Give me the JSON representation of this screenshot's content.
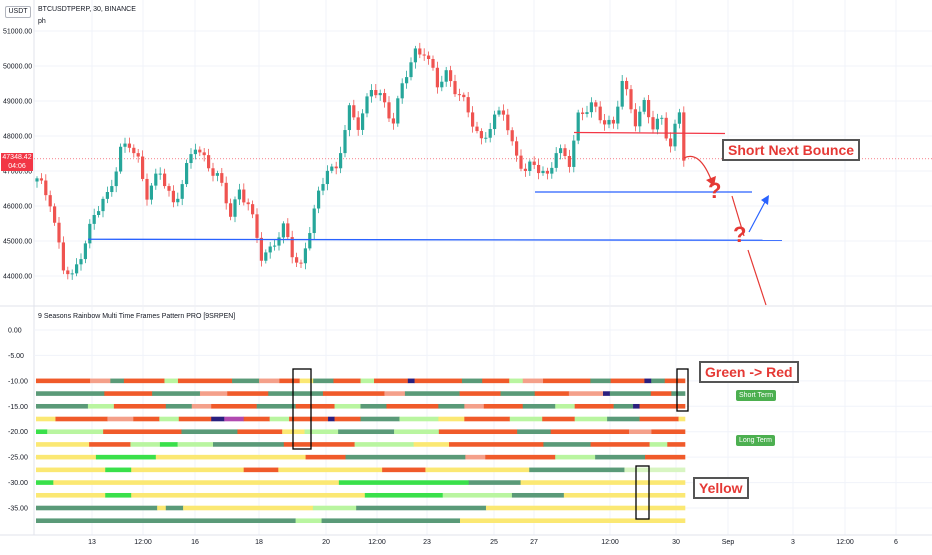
{
  "symbol_header": "BTCUSDTPERP, 30, BINANCE",
  "sub_header": "ph",
  "currency_tag": "USDT",
  "price_tag": "47348.42",
  "countdown_tag": "04:06",
  "indicator_title": "9 Seasons Rainbow Multi Time Frames Pattern PRO [9SRPEN]",
  "annotations": {
    "short_next_bounce": "Short Next Bounce",
    "green_to_red": "Green -> Red",
    "yellow": "Yellow",
    "question_1": "?",
    "question_2": "?"
  },
  "badges": {
    "short_term": "Short Term",
    "long_term": "Long Term"
  },
  "colors": {
    "up": "#26a69a",
    "down": "#ef5350",
    "support": "#2962ff",
    "resistance": "#f23645",
    "price_line": "#f23645",
    "rainbow": {
      "r": "#f05a2a",
      "p": "#f4a08a",
      "g": "#5a9a78",
      "l": "#b9f5a0",
      "y": "#fbe873",
      "b": "#2a1f7e",
      "m": "#b04ab0",
      "G": "#39e04a",
      "s": "#d8f5c2"
    }
  },
  "chart_data": [
    {
      "type": "candlestick",
      "title": "BTCUSDTPERP, 30, BINANCE",
      "y_tick_labels": [
        "44000.00",
        "45000.00",
        "46000.00",
        "47000.00",
        "48000.00",
        "49000.00",
        "50000.00",
        "51000.00"
      ],
      "x_tick_labels": [
        "13",
        "12:00",
        "16",
        "18",
        "20",
        "12:00",
        "23",
        "25",
        "27",
        "12:00",
        "30",
        "Sep",
        "3",
        "12:00",
        "6"
      ],
      "close_path": [
        [
          0,
          46700
        ],
        [
          3,
          46200
        ],
        [
          6,
          44200
        ],
        [
          8,
          43900
        ],
        [
          10,
          44700
        ],
        [
          13,
          45700
        ],
        [
          16,
          46300
        ],
        [
          19,
          47600
        ],
        [
          21,
          47700
        ],
        [
          23,
          47300
        ],
        [
          25,
          46400
        ],
        [
          28,
          46900
        ],
        [
          31,
          46100
        ],
        [
          33,
          46700
        ],
        [
          36,
          47700
        ],
        [
          38,
          47400
        ],
        [
          41,
          46800
        ],
        [
          44,
          45800
        ],
        [
          46,
          46500
        ],
        [
          48,
          46000
        ],
        [
          51,
          44600
        ],
        [
          53,
          44800
        ],
        [
          56,
          45300
        ],
        [
          58,
          44700
        ],
        [
          60,
          44300
        ],
        [
          63,
          45800
        ],
        [
          66,
          47200
        ],
        [
          68,
          47000
        ],
        [
          71,
          48700
        ],
        [
          73,
          48400
        ],
        [
          76,
          49300
        ],
        [
          78,
          49100
        ],
        [
          81,
          48500
        ],
        [
          83,
          49400
        ],
        [
          86,
          50400
        ],
        [
          88,
          50500
        ],
        [
          91,
          49400
        ],
        [
          93,
          49800
        ],
        [
          96,
          49200
        ],
        [
          98,
          48600
        ],
        [
          101,
          47900
        ],
        [
          103,
          48300
        ],
        [
          106,
          48700
        ],
        [
          108,
          47800
        ],
        [
          111,
          46900
        ],
        [
          113,
          47200
        ],
        [
          116,
          46900
        ],
        [
          118,
          47500
        ],
        [
          121,
          47300
        ],
        [
          123,
          48600
        ],
        [
          126,
          48800
        ],
        [
          128,
          48600
        ],
        [
          131,
          48300
        ],
        [
          133,
          49500
        ],
        [
          136,
          48500
        ],
        [
          138,
          48900
        ],
        [
          140,
          48200
        ],
        [
          142,
          48500
        ],
        [
          144,
          47800
        ],
        [
          146,
          48600
        ],
        [
          147,
          47350
        ]
      ],
      "resistance": 48100,
      "support_upper": 46400,
      "support_lower": 45050,
      "current_price": 47348.42
    },
    {
      "type": "heatmap",
      "title": "9 Seasons Rainbow Multi Time Frames Pattern PRO [9SRPEN]",
      "y_tick_labels": [
        "0.00",
        "-5.00",
        "-10.00",
        "-15.00",
        "-20.00",
        "-25.00",
        "-30.00",
        "-35.00"
      ],
      "rows": [
        {
          "y": -10,
          "segments": [
            [
              "r",
              8
            ],
            [
              "p",
              3
            ],
            [
              "g",
              2
            ],
            [
              "r",
              6
            ],
            [
              "l",
              2
            ],
            [
              "r",
              8
            ],
            [
              "g",
              4
            ],
            [
              "p",
              3
            ],
            [
              "r",
              3
            ],
            [
              "y",
              2
            ],
            [
              "g",
              3
            ],
            [
              "r",
              4
            ],
            [
              "l",
              2
            ],
            [
              "r",
              5
            ],
            [
              "b",
              1
            ],
            [
              "r",
              7
            ],
            [
              "g",
              3
            ],
            [
              "r",
              4
            ],
            [
              "l",
              2
            ],
            [
              "p",
              3
            ],
            [
              "r",
              7
            ],
            [
              "g",
              3
            ],
            [
              "r",
              5
            ],
            [
              "b",
              1
            ],
            [
              "g",
              2
            ],
            [
              "r",
              3
            ]
          ]
        },
        {
          "y": -12.5,
          "segments": [
            [
              "g",
              10
            ],
            [
              "r",
              7
            ],
            [
              "g",
              7
            ],
            [
              "p",
              4
            ],
            [
              "r",
              6
            ],
            [
              "g",
              8
            ],
            [
              "r",
              9
            ],
            [
              "p",
              3
            ],
            [
              "g",
              8
            ],
            [
              "r",
              6
            ],
            [
              "g",
              5
            ],
            [
              "r",
              5
            ],
            [
              "p",
              5
            ],
            [
              "b",
              1
            ],
            [
              "g",
              6
            ],
            [
              "r",
              3
            ],
            [
              "g",
              2
            ]
          ]
        },
        {
          "y": -15,
          "segments": [
            [
              "g",
              8
            ],
            [
              "l",
              4
            ],
            [
              "r",
              8
            ],
            [
              "g",
              4
            ],
            [
              "p",
              3
            ],
            [
              "r",
              7
            ],
            [
              "g",
              6
            ],
            [
              "r",
              6
            ],
            [
              "l",
              4
            ],
            [
              "g",
              4
            ],
            [
              "r",
              8
            ],
            [
              "g",
              4
            ],
            [
              "p",
              3
            ],
            [
              "r",
              6
            ],
            [
              "g",
              5
            ],
            [
              "l",
              3
            ],
            [
              "r",
              6
            ],
            [
              "g",
              3
            ],
            [
              "b",
              1
            ],
            [
              "r",
              7
            ]
          ]
        },
        {
          "y": -17.5,
          "segments": [
            [
              "y",
              3
            ],
            [
              "r",
              8
            ],
            [
              "p",
              4
            ],
            [
              "r",
              4
            ],
            [
              "l",
              3
            ],
            [
              "r",
              5
            ],
            [
              "b",
              2
            ],
            [
              "m",
              3
            ],
            [
              "r",
              4
            ],
            [
              "l",
              3
            ],
            [
              "r",
              6
            ],
            [
              "b",
              1
            ],
            [
              "r",
              4
            ],
            [
              "g",
              6
            ],
            [
              "l",
              6
            ],
            [
              "y",
              4
            ],
            [
              "r",
              7
            ],
            [
              "l",
              5
            ],
            [
              "r",
              5
            ],
            [
              "l",
              5
            ],
            [
              "g",
              5
            ],
            [
              "r",
              6
            ],
            [
              "y",
              1
            ]
          ]
        },
        {
          "y": -20,
          "segments": [
            [
              "G",
              2
            ],
            [
              "l",
              10
            ],
            [
              "r",
              14
            ],
            [
              "g",
              10
            ],
            [
              "r",
              8
            ],
            [
              "y",
              4
            ],
            [
              "l",
              6
            ],
            [
              "g",
              10
            ],
            [
              "l",
              8
            ],
            [
              "r",
              14
            ],
            [
              "g",
              6
            ],
            [
              "r",
              14
            ],
            [
              "p",
              4
            ],
            [
              "r",
              6
            ]
          ]
        },
        {
          "y": -22.5,
          "segments": [
            [
              "y",
              9
            ],
            [
              "r",
              7
            ],
            [
              "l",
              5
            ],
            [
              "G",
              3
            ],
            [
              "l",
              6
            ],
            [
              "g",
              12
            ],
            [
              "r",
              12
            ],
            [
              "l",
              10
            ],
            [
              "y",
              6
            ],
            [
              "r",
              16
            ],
            [
              "g",
              8
            ],
            [
              "r",
              10
            ],
            [
              "l",
              3
            ],
            [
              "r",
              3
            ]
          ]
        },
        {
          "y": -25,
          "segments": [
            [
              "y",
              12
            ],
            [
              "G",
              12
            ],
            [
              "y",
              30
            ],
            [
              "r",
              8
            ],
            [
              "g",
              24
            ],
            [
              "p",
              4
            ],
            [
              "r",
              14
            ],
            [
              "l",
              8
            ],
            [
              "g",
              10
            ],
            [
              "r",
              8
            ]
          ]
        },
        {
          "y": -27.5,
          "segments": [
            [
              "y",
              16
            ],
            [
              "G",
              6
            ],
            [
              "y",
              26
            ],
            [
              "r",
              8
            ],
            [
              "y",
              24
            ],
            [
              "r",
              10
            ],
            [
              "y",
              24
            ],
            [
              "g",
              22
            ],
            [
              "s",
              14
            ]
          ]
        },
        {
          "y": -30,
          "segments": [
            [
              "G",
              4
            ],
            [
              "y",
              66
            ],
            [
              "G",
              30
            ],
            [
              "g",
              12
            ],
            [
              "y",
              38
            ]
          ]
        },
        {
          "y": -32.5,
          "segments": [
            [
              "y",
              16
            ],
            [
              "G",
              6
            ],
            [
              "y",
              54
            ],
            [
              "G",
              18
            ],
            [
              "l",
              16
            ],
            [
              "g",
              12
            ],
            [
              "y",
              28
            ]
          ]
        },
        {
          "y": -35,
          "segments": [
            [
              "g",
              28
            ],
            [
              "y",
              2
            ],
            [
              "g",
              4
            ],
            [
              "y",
              30
            ],
            [
              "l",
              10
            ],
            [
              "g",
              30
            ],
            [
              "y",
              46
            ]
          ]
        },
        {
          "y": -37.5,
          "segments": [
            [
              "g",
              60
            ],
            [
              "l",
              6
            ],
            [
              "g",
              32
            ],
            [
              "y",
              52
            ]
          ]
        }
      ]
    }
  ]
}
